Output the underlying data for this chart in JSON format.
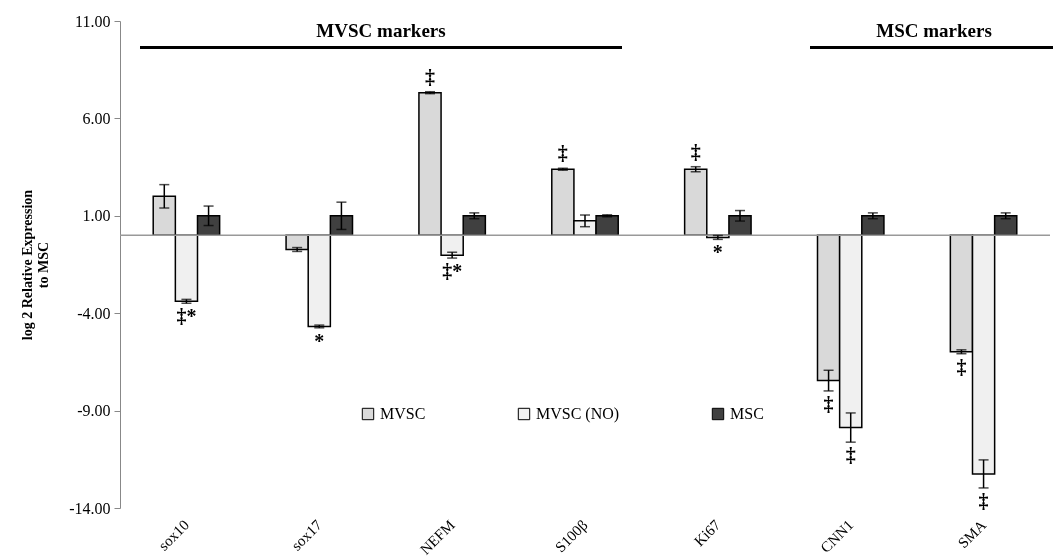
{
  "chart_data": {
    "type": "bar",
    "ylabel": "log 2 Relative Expression\nto MSC",
    "categories": [
      "sox10",
      "sox17",
      "NEFM",
      "S100β",
      "Ki67",
      "CNN1",
      "SMA"
    ],
    "series": [
      {
        "name": "MVSC",
        "color": "#d9d9d9",
        "values": [
          2.0,
          -0.73,
          7.32,
          3.39,
          3.39,
          -7.46,
          -5.98
        ],
        "errors": [
          0.6,
          0.1,
          0.05,
          0.05,
          0.13,
          0.53,
          0.1
        ]
      },
      {
        "name": "MVSC (NO)",
        "color": "#f0f0f0",
        "values": [
          -3.39,
          -4.68,
          -1.02,
          0.74,
          -0.11,
          -9.87,
          -12.25
        ],
        "errors": [
          0.1,
          0.07,
          0.15,
          0.3,
          0.1,
          0.75,
          0.72
        ]
      },
      {
        "name": "MSC",
        "color": "#404040",
        "values": [
          1.0,
          1.0,
          1.0,
          1.0,
          1.0,
          1.0,
          1.0
        ],
        "errors": [
          0.5,
          0.7,
          0.15,
          0.05,
          0.27,
          0.15,
          0.15
        ]
      }
    ],
    "ylim": [
      -14,
      11
    ],
    "yticks": [
      {
        "value": 11,
        "label": "11.00"
      },
      {
        "value": 6,
        "label": "6.00"
      },
      {
        "value": 1,
        "label": "1.00"
      },
      {
        "value": -4,
        "label": "-4.00"
      },
      {
        "value": -9,
        "label": "-9.00"
      },
      {
        "value": -14,
        "label": "-14.00"
      }
    ],
    "grid": false,
    "legend": "bottom",
    "annotations": [
      "MVSC markers",
      "MSC markers",
      {
        "text": "‡*",
        "x": "sox10",
        "y": -3.39
      },
      {
        "text": "*",
        "x": "sox17",
        "y": -4.68
      },
      {
        "text": "‡",
        "x": "NEFM",
        "y": 7.32
      },
      {
        "text": "‡*",
        "x": "NEFM",
        "y": -1.02
      },
      {
        "text": "‡",
        "x": "S100β",
        "y": 3.39
      },
      {
        "text": "‡",
        "x": "Ki67",
        "y": 3.39
      },
      {
        "text": "*",
        "x": "Ki67",
        "y": -0.11
      },
      {
        "text": "‡",
        "x": "CNN1",
        "y": -7.46
      },
      {
        "text": "‡",
        "x": "CNN1",
        "y": -9.87
      },
      {
        "text": "‡",
        "x": "SMA",
        "y": -5.98
      },
      {
        "text": "‡",
        "x": "SMA",
        "y": -12.25
      }
    ]
  }
}
